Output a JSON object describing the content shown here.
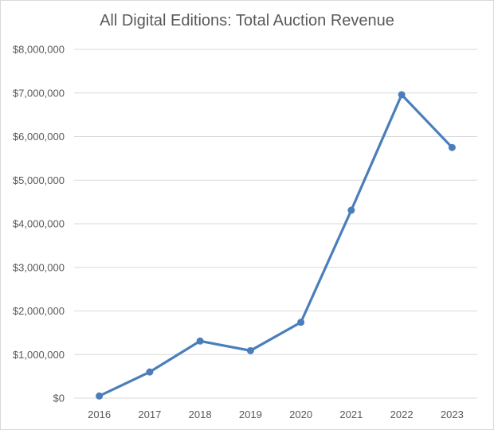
{
  "chart_data": {
    "type": "line",
    "title": "All Digital Editions: Total Auction Revenue",
    "xlabel": "",
    "ylabel": "",
    "categories": [
      "2016",
      "2017",
      "2018",
      "2019",
      "2020",
      "2021",
      "2022",
      "2023"
    ],
    "values": [
      50000,
      600000,
      1310000,
      1090000,
      1740000,
      4310000,
      6960000,
      5750000
    ],
    "ylim": [
      0,
      8000000
    ],
    "yticks": [
      0,
      1000000,
      2000000,
      3000000,
      4000000,
      5000000,
      6000000,
      7000000,
      8000000
    ],
    "ytick_labels": [
      "$0",
      "$1,000,000",
      "$2,000,000",
      "$3,000,000",
      "$4,000,000",
      "$5,000,000",
      "$6,000,000",
      "$7,000,000",
      "$8,000,000"
    ],
    "grid": true,
    "legend": "none",
    "line_color": "#4a7ebb",
    "grid_color": "#d9d9d9"
  }
}
